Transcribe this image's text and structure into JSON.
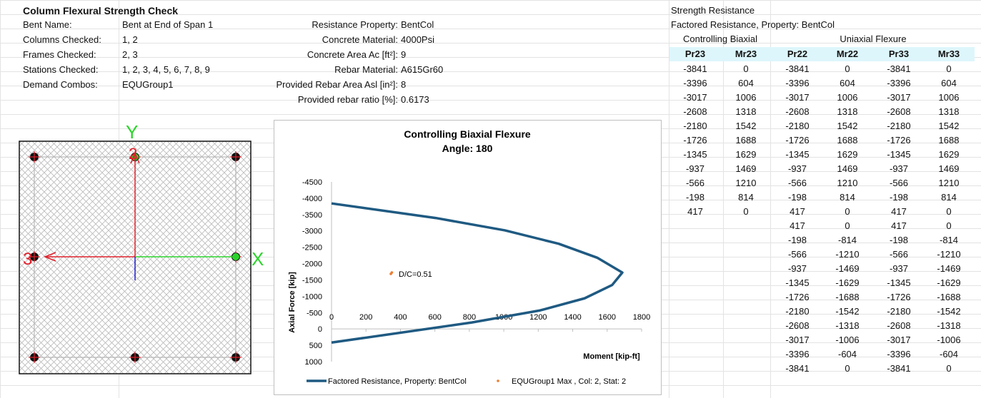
{
  "header": {
    "title": "Column Flexural Strength Check",
    "rows": [
      {
        "label": "Bent Name:",
        "value": "Bent at End of Span 1"
      },
      {
        "label": "Columns Checked:",
        "value": "1, 2"
      },
      {
        "label": "Frames Checked:",
        "value": "2, 3"
      },
      {
        "label": "Stations Checked:",
        "value": "1, 2, 3, 4, 5, 6, 7, 8, 9"
      },
      {
        "label": "Demand Combos:",
        "value": "EQUGroup1"
      }
    ]
  },
  "properties": {
    "rows": [
      {
        "label": "Resistance Property:",
        "value": "BentCol"
      },
      {
        "label": "Concrete Material:",
        "value": "4000Psi"
      },
      {
        "label": "Concrete Area Ac [ft²]:",
        "value": "9"
      },
      {
        "label": "Rebar Material:",
        "value": "A615Gr60"
      },
      {
        "label": "Provided Rebar Area Asl [in²]:",
        "value": "8"
      },
      {
        "label": "Provided rebar ratio [%]:",
        "value": "0.6173"
      }
    ]
  },
  "resistance_table": {
    "title1": "Strength Resistance",
    "title2": "Factored Resistance, Property: BentCol",
    "group_controlling": "Controlling Biaxial",
    "group_uniaxial": "Uniaxial Flexure",
    "columns": [
      "Pr23",
      "Mr23",
      "Pr22",
      "Mr22",
      "Pr33",
      "Mr33"
    ],
    "biaxial_rows": [
      [
        "-3841",
        "0"
      ],
      [
        "-3396",
        "604"
      ],
      [
        "-3017",
        "1006"
      ],
      [
        "-2608",
        "1318"
      ],
      [
        "-2180",
        "1542"
      ],
      [
        "-1726",
        "1688"
      ],
      [
        "-1345",
        "1629"
      ],
      [
        "-937",
        "1469"
      ],
      [
        "-566",
        "1210"
      ],
      [
        "-198",
        "814"
      ],
      [
        "417",
        "0"
      ]
    ],
    "uniaxial_rows": [
      [
        "-3841",
        "0",
        "-3841",
        "0"
      ],
      [
        "-3396",
        "604",
        "-3396",
        "604"
      ],
      [
        "-3017",
        "1006",
        "-3017",
        "1006"
      ],
      [
        "-2608",
        "1318",
        "-2608",
        "1318"
      ],
      [
        "-2180",
        "1542",
        "-2180",
        "1542"
      ],
      [
        "-1726",
        "1688",
        "-1726",
        "1688"
      ],
      [
        "-1345",
        "1629",
        "-1345",
        "1629"
      ],
      [
        "-937",
        "1469",
        "-937",
        "1469"
      ],
      [
        "-566",
        "1210",
        "-566",
        "1210"
      ],
      [
        "-198",
        "814",
        "-198",
        "814"
      ],
      [
        "417",
        "0",
        "417",
        "0"
      ],
      [
        "417",
        "0",
        "417",
        "0"
      ],
      [
        "-198",
        "-814",
        "-198",
        "-814"
      ],
      [
        "-566",
        "-1210",
        "-566",
        "-1210"
      ],
      [
        "-937",
        "-1469",
        "-937",
        "-1469"
      ],
      [
        "-1345",
        "-1629",
        "-1345",
        "-1629"
      ],
      [
        "-1726",
        "-1688",
        "-1726",
        "-1688"
      ],
      [
        "-2180",
        "-1542",
        "-2180",
        "-1542"
      ],
      [
        "-2608",
        "-1318",
        "-2608",
        "-1318"
      ],
      [
        "-3017",
        "-1006",
        "-3017",
        "-1006"
      ],
      [
        "-3396",
        "-604",
        "-3396",
        "-604"
      ],
      [
        "-3841",
        "0",
        "-3841",
        "0"
      ]
    ]
  },
  "section": {
    "axis_y_label": "Y",
    "axis_x_label": "X",
    "axis_3_label": "3",
    "axis_2_label": "2",
    "colors": {
      "axis3": "#e0202a",
      "axis2": "#e0202a",
      "axisX": "#2bd42b",
      "axisY": "#2bd42b",
      "center": "#1a1acc"
    }
  },
  "chart_data": {
    "type": "line",
    "title": "Controlling Biaxial Flexure",
    "subtitle": "Angle: 180",
    "xlabel": "Moment [kip-ft]",
    "ylabel": "Axial Force [kip]",
    "xlim": [
      0,
      1800
    ],
    "ylim": [
      1000,
      -4500
    ],
    "x_ticks": [
      "0",
      "200",
      "400",
      "600",
      "800",
      "1000",
      "1200",
      "1400",
      "1600",
      "1800"
    ],
    "y_ticks": [
      "-4500",
      "-4000",
      "-3500",
      "-3000",
      "-2500",
      "-2000",
      "-1500",
      "-1000",
      "-500",
      "0",
      "500",
      "1000"
    ],
    "series": [
      {
        "name": "Factored Resistance, Property: BentCol",
        "color": "#1f5a82",
        "x": [
          0,
          604,
          1006,
          1318,
          1542,
          1688,
          1629,
          1469,
          1210,
          814,
          0
        ],
        "y": [
          -3841,
          -3396,
          -3017,
          -2608,
          -2180,
          -1726,
          -1345,
          -937,
          -566,
          -198,
          417
        ]
      },
      {
        "name": "EQUGroup1 Max , Col: 2, Stat: 2",
        "color": "#ed7d31",
        "x": [
          350
        ],
        "y": [
          -1726
        ]
      }
    ],
    "annotation": "D/C=0.51"
  }
}
